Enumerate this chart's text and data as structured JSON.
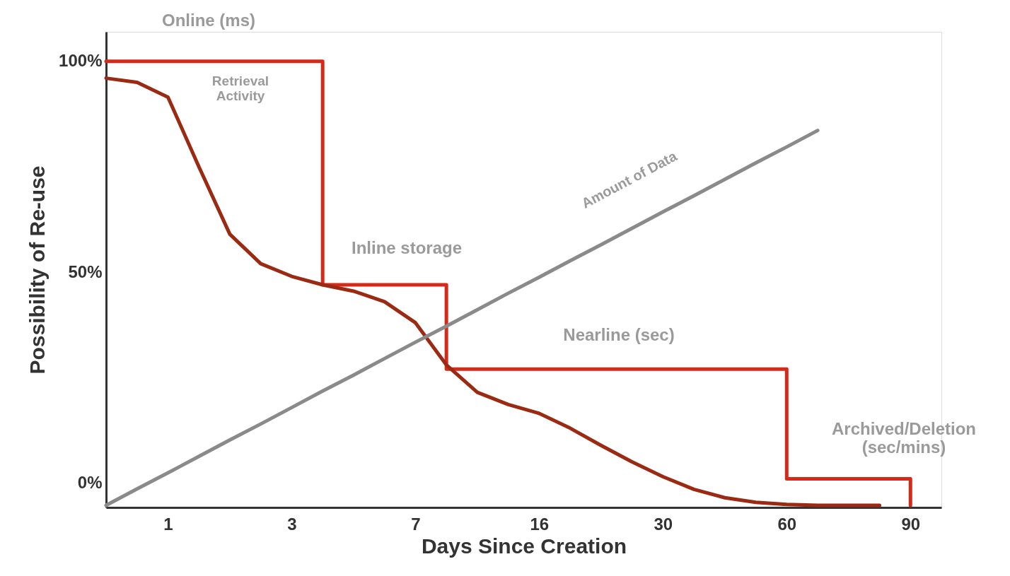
{
  "chart_data": {
    "type": "line",
    "xlabel": "Days Since Creation",
    "ylabel": "Possibility of Re-use",
    "categories": [
      null,
      null,
      "1",
      null,
      null,
      null,
      "3",
      null,
      null,
      null,
      "7",
      null,
      null,
      null,
      "16",
      null,
      null,
      null,
      "30",
      null,
      null,
      null,
      "60",
      null,
      null,
      null,
      "90",
      null
    ],
    "ylim": [
      -5.8,
      107
    ],
    "yticks": [
      {
        "value": 0,
        "label": "0%"
      },
      {
        "value": 50,
        "label": "50%"
      },
      {
        "value": 100,
        "label": "100%"
      }
    ],
    "grid": false,
    "marker": "none",
    "line_style": "solid",
    "series": [
      {
        "type": "step",
        "color": "#d42a1a",
        "values": [
          100,
          100,
          100,
          100,
          100,
          100,
          100,
          47,
          47,
          47,
          47,
          27,
          27,
          27,
          27,
          27,
          27,
          27,
          27,
          27,
          27,
          27,
          1,
          1,
          1,
          1,
          -5.3,
          null
        ]
      },
      {
        "type": "line",
        "color": "#9c2a12",
        "values": [
          96,
          95,
          91.5,
          75,
          59,
          52,
          49,
          47,
          45.5,
          43,
          38,
          28,
          21.5,
          18.6,
          16.5,
          13,
          8.9,
          5,
          1.5,
          -1.5,
          -3.5,
          -4.6,
          -5.1,
          -5.3,
          -5.3,
          -5.3,
          null,
          null
        ]
      },
      {
        "type": "line",
        "color": "#8a8a8a",
        "values": [
          -5.3,
          -1.4,
          2.4,
          6.3,
          10.2,
          14.0,
          17.9,
          21.8,
          25.6,
          29.5,
          33.4,
          37.2,
          41.1,
          45.0,
          48.8,
          52.7,
          56.5,
          60.4,
          64.3,
          68.1,
          72.0,
          75.9,
          79.7,
          83.6,
          null,
          null,
          null,
          null
        ]
      }
    ],
    "annotations": [
      "Online (ms)",
      "Retrieval\nActivity",
      "Inline storage",
      "Nearline (sec)",
      "Archived/Deletion\n(sec/mins)",
      "Amount of Data"
    ]
  }
}
